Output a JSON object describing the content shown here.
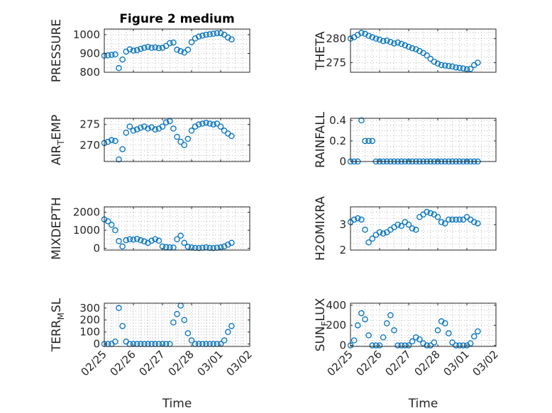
{
  "figure_title": "Figure 2 medium",
  "colors": {
    "marker": "#0072bd",
    "axes": "#262626",
    "grid": "#b8b8b8"
  },
  "chart_data": [
    {
      "type": "scatter",
      "title": "Figure 2 medium",
      "ylabel": "PRESSURE",
      "xlabel": "",
      "ylim": [
        800,
        1030
      ],
      "yticks": [
        800,
        900,
        1000
      ],
      "ytick_labels": [
        "800",
        "900",
        "1000"
      ],
      "xlim": [
        "02/25",
        "03/02"
      ],
      "xticks": [
        "02/25",
        "02/26",
        "02/27",
        "02/28",
        "03/01",
        "03/02"
      ],
      "show_xticklabels": false,
      "grid": true,
      "x": [
        "02/25 00:00",
        "02/25 03:00",
        "02/25 06:00",
        "02/25 09:00",
        "02/25 12:00",
        "02/25 15:00",
        "02/25 18:00",
        "02/25 21:00",
        "02/26 00:00",
        "02/26 03:00",
        "02/26 06:00",
        "02/26 09:00",
        "02/26 12:00",
        "02/26 15:00",
        "02/26 18:00",
        "02/26 21:00",
        "02/27 00:00",
        "02/27 03:00",
        "02/27 06:00",
        "02/27 09:00",
        "02/27 12:00",
        "02/27 15:00",
        "02/27 18:00",
        "02/27 21:00",
        "02/28 00:00",
        "02/28 03:00",
        "02/28 06:00",
        "02/28 09:00",
        "02/28 12:00",
        "02/28 15:00",
        "02/28 18:00",
        "02/28 21:00",
        "03/01 00:00",
        "03/01 03:00",
        "03/01 06:00",
        "03/01 09:00"
      ],
      "y": [
        888,
        890,
        893,
        895,
        822,
        868,
        910,
        922,
        915,
        918,
        925,
        930,
        935,
        930,
        932,
        928,
        930,
        940,
        955,
        958,
        920,
        912,
        905,
        920,
        960,
        980,
        990,
        995,
        1000,
        1002,
        1005,
        1008,
        1008,
        1000,
        985,
        975
      ]
    },
    {
      "type": "scatter",
      "title": "",
      "ylabel": "THETA",
      "xlabel": "",
      "ylim": [
        273,
        282
      ],
      "yticks": [
        275,
        280
      ],
      "ytick_labels": [
        "275",
        "280"
      ],
      "xlim": [
        "02/25",
        "03/02"
      ],
      "xticks": [
        "02/25",
        "02/26",
        "02/27",
        "02/28",
        "03/01",
        "03/02"
      ],
      "show_xticklabels": false,
      "grid": true,
      "x": [
        "02/25 00:00",
        "02/25 03:00",
        "02/25 06:00",
        "02/25 09:00",
        "02/25 12:00",
        "02/25 15:00",
        "02/25 18:00",
        "02/25 21:00",
        "02/26 00:00",
        "02/26 03:00",
        "02/26 06:00",
        "02/26 09:00",
        "02/26 12:00",
        "02/26 15:00",
        "02/26 18:00",
        "02/26 21:00",
        "02/27 00:00",
        "02/27 03:00",
        "02/27 06:00",
        "02/27 09:00",
        "02/27 12:00",
        "02/27 15:00",
        "02/27 18:00",
        "02/27 21:00",
        "02/28 00:00",
        "02/28 03:00",
        "02/28 06:00",
        "02/28 09:00",
        "02/28 12:00",
        "02/28 15:00",
        "02/28 18:00",
        "02/28 21:00",
        "03/01 00:00",
        "03/01 03:00",
        "03/01 06:00",
        "03/01 09:00"
      ],
      "y": [
        280.0,
        280.3,
        280.8,
        281.2,
        281.0,
        280.6,
        280.3,
        280.0,
        279.8,
        279.5,
        279.6,
        279.3,
        279.0,
        279.2,
        278.9,
        278.6,
        278.3,
        278.0,
        277.8,
        277.4,
        277.0,
        276.5,
        275.8,
        275.2,
        274.8,
        274.5,
        274.4,
        274.3,
        274.2,
        274.0,
        273.9,
        273.8,
        273.6,
        273.7,
        274.5,
        275.0
      ]
    },
    {
      "type": "scatter",
      "title": "",
      "ylabel": "AIR_TEMP",
      "xlabel": "",
      "ylim": [
        266,
        276.5
      ],
      "yticks": [
        270,
        275
      ],
      "ytick_labels": [
        "270",
        "275"
      ],
      "xlim": [
        "02/25",
        "03/02"
      ],
      "xticks": [
        "02/25",
        "02/26",
        "02/27",
        "02/28",
        "03/01",
        "03/02"
      ],
      "show_xticklabels": false,
      "grid": true,
      "x": [
        "02/25 00:00",
        "02/25 03:00",
        "02/25 06:00",
        "02/25 09:00",
        "02/25 12:00",
        "02/25 15:00",
        "02/25 18:00",
        "02/25 21:00",
        "02/26 00:00",
        "02/26 03:00",
        "02/26 06:00",
        "02/26 09:00",
        "02/26 12:00",
        "02/26 15:00",
        "02/26 18:00",
        "02/26 21:00",
        "02/27 00:00",
        "02/27 03:00",
        "02/27 06:00",
        "02/27 09:00",
        "02/27 12:00",
        "02/27 15:00",
        "02/27 18:00",
        "02/27 21:00",
        "02/28 00:00",
        "02/28 03:00",
        "02/28 06:00",
        "02/28 09:00",
        "02/28 12:00",
        "02/28 15:00",
        "02/28 18:00",
        "02/28 21:00",
        "03/01 00:00",
        "03/01 03:00",
        "03/01 06:00",
        "03/01 09:00"
      ],
      "y": [
        270.5,
        270.8,
        271.2,
        271.0,
        266.5,
        269.0,
        273.0,
        274.5,
        273.5,
        273.8,
        274.2,
        274.5,
        274.0,
        274.3,
        273.8,
        274.0,
        274.5,
        275.5,
        275.8,
        274.0,
        272.0,
        270.8,
        270.0,
        271.5,
        273.5,
        274.5,
        275.0,
        275.2,
        275.4,
        275.2,
        275.0,
        275.2,
        274.5,
        273.5,
        272.8,
        272.2
      ]
    },
    {
      "type": "scatter",
      "title": "",
      "ylabel": "RAINFALL",
      "xlabel": "",
      "ylim": [
        0,
        0.42
      ],
      "yticks": [
        0,
        0.2,
        0.4
      ],
      "ytick_labels": [
        "0",
        "0.2",
        "0.4"
      ],
      "xlim": [
        "02/25",
        "03/02"
      ],
      "xticks": [
        "02/25",
        "02/26",
        "02/27",
        "02/28",
        "03/01",
        "03/02"
      ],
      "show_xticklabels": false,
      "grid": true,
      "x": [
        "02/25 00:00",
        "02/25 03:00",
        "02/25 06:00",
        "02/25 09:00",
        "02/25 12:00",
        "02/25 15:00",
        "02/25 18:00",
        "02/25 21:00",
        "02/26 00:00",
        "02/26 03:00",
        "02/26 06:00",
        "02/26 09:00",
        "02/26 12:00",
        "02/26 15:00",
        "02/26 18:00",
        "02/26 21:00",
        "02/27 00:00",
        "02/27 03:00",
        "02/27 06:00",
        "02/27 09:00",
        "02/27 12:00",
        "02/27 15:00",
        "02/27 18:00",
        "02/27 21:00",
        "02/28 00:00",
        "02/28 03:00",
        "02/28 06:00",
        "02/28 09:00",
        "02/28 12:00",
        "02/28 15:00",
        "02/28 18:00",
        "02/28 21:00",
        "03/01 00:00",
        "03/01 03:00",
        "03/01 06:00",
        "03/01 09:00"
      ],
      "y": [
        0,
        0,
        0,
        0.4,
        0.2,
        0.2,
        0.2,
        0,
        0,
        0,
        0,
        0,
        0,
        0,
        0,
        0,
        0,
        0,
        0,
        0,
        0,
        0,
        0,
        0,
        0,
        0,
        0,
        0,
        0,
        0,
        0,
        0,
        0,
        0,
        0,
        0
      ]
    },
    {
      "type": "scatter",
      "title": "",
      "ylabel": "MIXDEPTH",
      "xlabel": "",
      "ylim": [
        -100,
        2300
      ],
      "yticks": [
        0,
        1000,
        2000
      ],
      "ytick_labels": [
        "0",
        "1000",
        "2000"
      ],
      "xlim": [
        "02/25",
        "03/02"
      ],
      "xticks": [
        "02/25",
        "02/26",
        "02/27",
        "02/28",
        "03/01",
        "03/02"
      ],
      "show_xticklabels": false,
      "grid": true,
      "x": [
        "02/25 00:00",
        "02/25 03:00",
        "02/25 06:00",
        "02/25 09:00",
        "02/25 12:00",
        "02/25 15:00",
        "02/25 18:00",
        "02/25 21:00",
        "02/26 00:00",
        "02/26 03:00",
        "02/26 06:00",
        "02/26 09:00",
        "02/26 12:00",
        "02/26 15:00",
        "02/26 18:00",
        "02/26 21:00",
        "02/27 00:00",
        "02/27 03:00",
        "02/27 06:00",
        "02/27 09:00",
        "02/27 12:00",
        "02/27 15:00",
        "02/27 18:00",
        "02/27 21:00",
        "02/28 00:00",
        "02/28 03:00",
        "02/28 06:00",
        "02/28 09:00",
        "02/28 12:00",
        "02/28 15:00",
        "02/28 18:00",
        "02/28 21:00",
        "03/01 00:00",
        "03/01 03:00",
        "03/01 06:00",
        "03/01 09:00"
      ],
      "y": [
        1600,
        1500,
        1300,
        1000,
        400,
        100,
        450,
        500,
        480,
        520,
        450,
        380,
        300,
        420,
        500,
        420,
        100,
        60,
        50,
        40,
        500,
        700,
        300,
        80,
        40,
        20,
        10,
        30,
        50,
        20,
        10,
        30,
        50,
        100,
        200,
        300
      ]
    },
    {
      "type": "scatter",
      "title": "",
      "ylabel": "H2OMIXRA",
      "xlabel": "",
      "ylim": [
        2,
        3.7
      ],
      "yticks": [
        2,
        3
      ],
      "ytick_labels": [
        "2",
        "3"
      ],
      "xlim": [
        "02/25",
        "03/02"
      ],
      "xticks": [
        "02/25",
        "02/26",
        "02/27",
        "02/28",
        "03/01",
        "03/02"
      ],
      "show_xticklabels": false,
      "grid": true,
      "x": [
        "02/25 00:00",
        "02/25 03:00",
        "02/25 06:00",
        "02/25 09:00",
        "02/25 12:00",
        "02/25 15:00",
        "02/25 18:00",
        "02/25 21:00",
        "02/26 00:00",
        "02/26 03:00",
        "02/26 06:00",
        "02/26 09:00",
        "02/26 12:00",
        "02/26 15:00",
        "02/26 18:00",
        "02/26 21:00",
        "02/27 00:00",
        "02/27 03:00",
        "02/27 06:00",
        "02/27 09:00",
        "02/27 12:00",
        "02/27 15:00",
        "02/27 18:00",
        "02/27 21:00",
        "02/28 00:00",
        "02/28 03:00",
        "02/28 06:00",
        "02/28 09:00",
        "02/28 12:00",
        "02/28 15:00",
        "02/28 18:00",
        "02/28 21:00",
        "03/01 00:00",
        "03/01 03:00",
        "03/01 06:00",
        "03/01 09:00"
      ],
      "y": [
        3.1,
        3.2,
        3.25,
        3.2,
        2.8,
        2.3,
        2.45,
        2.6,
        2.7,
        2.65,
        2.7,
        2.8,
        2.9,
        3.0,
        2.95,
        3.1,
        3.0,
        2.85,
        2.8,
        3.3,
        3.4,
        3.5,
        3.45,
        3.4,
        3.3,
        3.1,
        3.05,
        3.2,
        3.2,
        3.2,
        3.2,
        3.2,
        3.3,
        3.2,
        3.1,
        3.05
      ]
    },
    {
      "type": "scatter",
      "title": "",
      "ylabel": "TERR_MSL",
      "xlabel": "Time",
      "ylim": [
        -20,
        340
      ],
      "yticks": [
        0,
        100,
        200,
        300
      ],
      "ytick_labels": [
        "0",
        "100",
        "200",
        "300"
      ],
      "xlim": [
        "02/25",
        "03/02"
      ],
      "xticks": [
        "02/25",
        "02/26",
        "02/27",
        "02/28",
        "03/01",
        "03/02"
      ],
      "show_xticklabels": true,
      "grid": true,
      "x": [
        "02/25 00:00",
        "02/25 03:00",
        "02/25 06:00",
        "02/25 09:00",
        "02/25 12:00",
        "02/25 15:00",
        "02/25 18:00",
        "02/25 21:00",
        "02/26 00:00",
        "02/26 03:00",
        "02/26 06:00",
        "02/26 09:00",
        "02/26 12:00",
        "02/26 15:00",
        "02/26 18:00",
        "02/26 21:00",
        "02/27 00:00",
        "02/27 03:00",
        "02/27 06:00",
        "02/27 09:00",
        "02/27 12:00",
        "02/27 15:00",
        "02/27 18:00",
        "02/27 21:00",
        "02/28 00:00",
        "02/28 03:00",
        "02/28 06:00",
        "02/28 09:00",
        "02/28 12:00",
        "02/28 15:00",
        "02/28 18:00",
        "02/28 21:00",
        "03/01 00:00",
        "03/01 03:00",
        "03/01 06:00",
        "03/01 09:00"
      ],
      "y": [
        0,
        0,
        0,
        20,
        300,
        150,
        20,
        0,
        0,
        0,
        0,
        0,
        0,
        0,
        0,
        0,
        0,
        0,
        0,
        180,
        250,
        320,
        200,
        90,
        30,
        0,
        0,
        0,
        0,
        0,
        0,
        0,
        0,
        30,
        100,
        150
      ]
    },
    {
      "type": "scatter",
      "title": "",
      "ylabel": "SUN_FLUX",
      "xlabel": "Time",
      "ylim": [
        -10,
        420
      ],
      "yticks": [
        0,
        200,
        400
      ],
      "ytick_labels": [
        "0",
        "200",
        "400"
      ],
      "xlim": [
        "02/25",
        "03/02"
      ],
      "xticks": [
        "02/25",
        "02/26",
        "02/27",
        "02/28",
        "03/01",
        "03/02"
      ],
      "show_xticklabels": true,
      "grid": true,
      "x": [
        "02/25 00:00",
        "02/25 03:00",
        "02/25 06:00",
        "02/25 09:00",
        "02/25 12:00",
        "02/25 15:00",
        "02/25 18:00",
        "02/25 21:00",
        "02/26 00:00",
        "02/26 03:00",
        "02/26 06:00",
        "02/26 09:00",
        "02/26 12:00",
        "02/26 15:00",
        "02/26 18:00",
        "02/26 21:00",
        "02/27 00:00",
        "02/27 03:00",
        "02/27 06:00",
        "02/27 09:00",
        "02/27 12:00",
        "02/27 15:00",
        "02/27 18:00",
        "02/27 21:00",
        "02/28 00:00",
        "02/28 03:00",
        "02/28 06:00",
        "02/28 09:00",
        "02/28 12:00",
        "02/28 15:00",
        "02/28 18:00",
        "02/28 21:00",
        "03/01 00:00",
        "03/01 03:00",
        "03/01 06:00",
        "03/01 09:00"
      ],
      "y": [
        0,
        50,
        200,
        320,
        260,
        100,
        0,
        0,
        0,
        80,
        220,
        300,
        150,
        0,
        0,
        0,
        0,
        40,
        80,
        60,
        20,
        0,
        0,
        30,
        150,
        240,
        220,
        120,
        30,
        0,
        0,
        0,
        0,
        20,
        90,
        140
      ]
    }
  ]
}
